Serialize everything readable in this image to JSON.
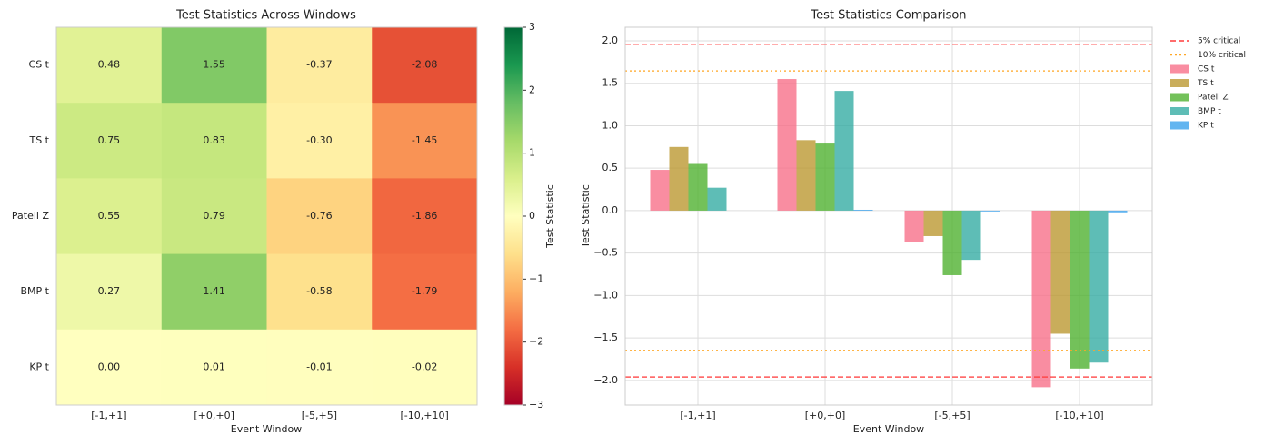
{
  "chart_data": [
    {
      "type": "heatmap",
      "title": "Test Statistics Across Windows",
      "xlabel": "Event Window",
      "categories": [
        "[-1,+1]",
        "[+0,+0]",
        "[-5,+5]",
        "[-10,+10]"
      ],
      "rows": [
        "CS t",
        "TS t",
        "Patell Z",
        "BMP t",
        "KP t"
      ],
      "values": [
        [
          0.48,
          1.55,
          -0.37,
          -2.08
        ],
        [
          0.75,
          0.83,
          -0.3,
          -1.45
        ],
        [
          0.55,
          0.79,
          -0.76,
          -1.86
        ],
        [
          0.27,
          1.41,
          -0.58,
          -1.79
        ],
        [
          0,
          0.01,
          -0.01,
          -0.02
        ]
      ],
      "value_labels": [
        [
          "0.48",
          "1.55",
          "-0.37",
          "-2.08"
        ],
        [
          "0.75",
          "0.83",
          "-0.30",
          "-1.45"
        ],
        [
          "0.55",
          "0.79",
          "-0.76",
          "-1.86"
        ],
        [
          "0.27",
          "1.41",
          "-0.58",
          "-1.79"
        ],
        [
          "0.00",
          "0.01",
          "-0.01",
          "-0.02"
        ]
      ],
      "colormap": "RdYlGn",
      "colorbar_label": "Test Statistic",
      "clim": [
        -3,
        3
      ],
      "cticks": [
        {
          "value": -3,
          "label": "−3"
        },
        {
          "value": -2,
          "label": "−2"
        },
        {
          "value": -1,
          "label": "−1"
        },
        0,
        1,
        2,
        3
      ]
    },
    {
      "type": "bar",
      "title": "Test Statistics Comparison",
      "xlabel": "Event Window",
      "ylabel": "Test Statistic",
      "categories": [
        "[-1,+1]",
        "[+0,+0]",
        "[-5,+5]",
        "[-10,+10]"
      ],
      "series": [
        {
          "name": "CS t",
          "color": "#f77189",
          "values": [
            0.48,
            1.55,
            -0.37,
            -2.08
          ]
        },
        {
          "name": "TS t",
          "color": "#bb9832",
          "values": [
            0.75,
            0.83,
            -0.3,
            -1.45
          ]
        },
        {
          "name": "Patell Z",
          "color": "#50b131",
          "values": [
            0.55,
            0.79,
            -0.76,
            -1.86
          ]
        },
        {
          "name": "BMP t",
          "color": "#36ada4",
          "values": [
            0.27,
            1.41,
            -0.58,
            -1.79
          ]
        },
        {
          "name": "KP t",
          "color": "#3ba3ec",
          "values": [
            0,
            0.01,
            -0.01,
            -0.02
          ]
        }
      ],
      "reference_lines": [
        {
          "name": "5% critical",
          "color": "#ff3b3b",
          "style": "dashed",
          "values": [
            1.96,
            -1.96
          ]
        },
        {
          "name": "10% critical",
          "color": "#ffa726",
          "style": "dotted",
          "values": [
            1.645,
            -1.645
          ]
        }
      ],
      "ylim": [
        -2.29,
        2.16
      ],
      "yticks": [
        {
          "value": -2,
          "label": "−2.0"
        },
        {
          "value": -1.5,
          "label": "−1.5"
        },
        {
          "value": -1,
          "label": "−1.0"
        },
        {
          "value": -0.5,
          "label": "−0.5"
        },
        {
          "value": 0,
          "label": "0.0"
        },
        {
          "value": 0.5,
          "label": "0.5"
        },
        {
          "value": 1,
          "label": "1.0"
        },
        {
          "value": 1.5,
          "label": "1.5"
        },
        {
          "value": 2,
          "label": "2.0"
        }
      ],
      "grid": true,
      "legend": "outside-right"
    }
  ]
}
